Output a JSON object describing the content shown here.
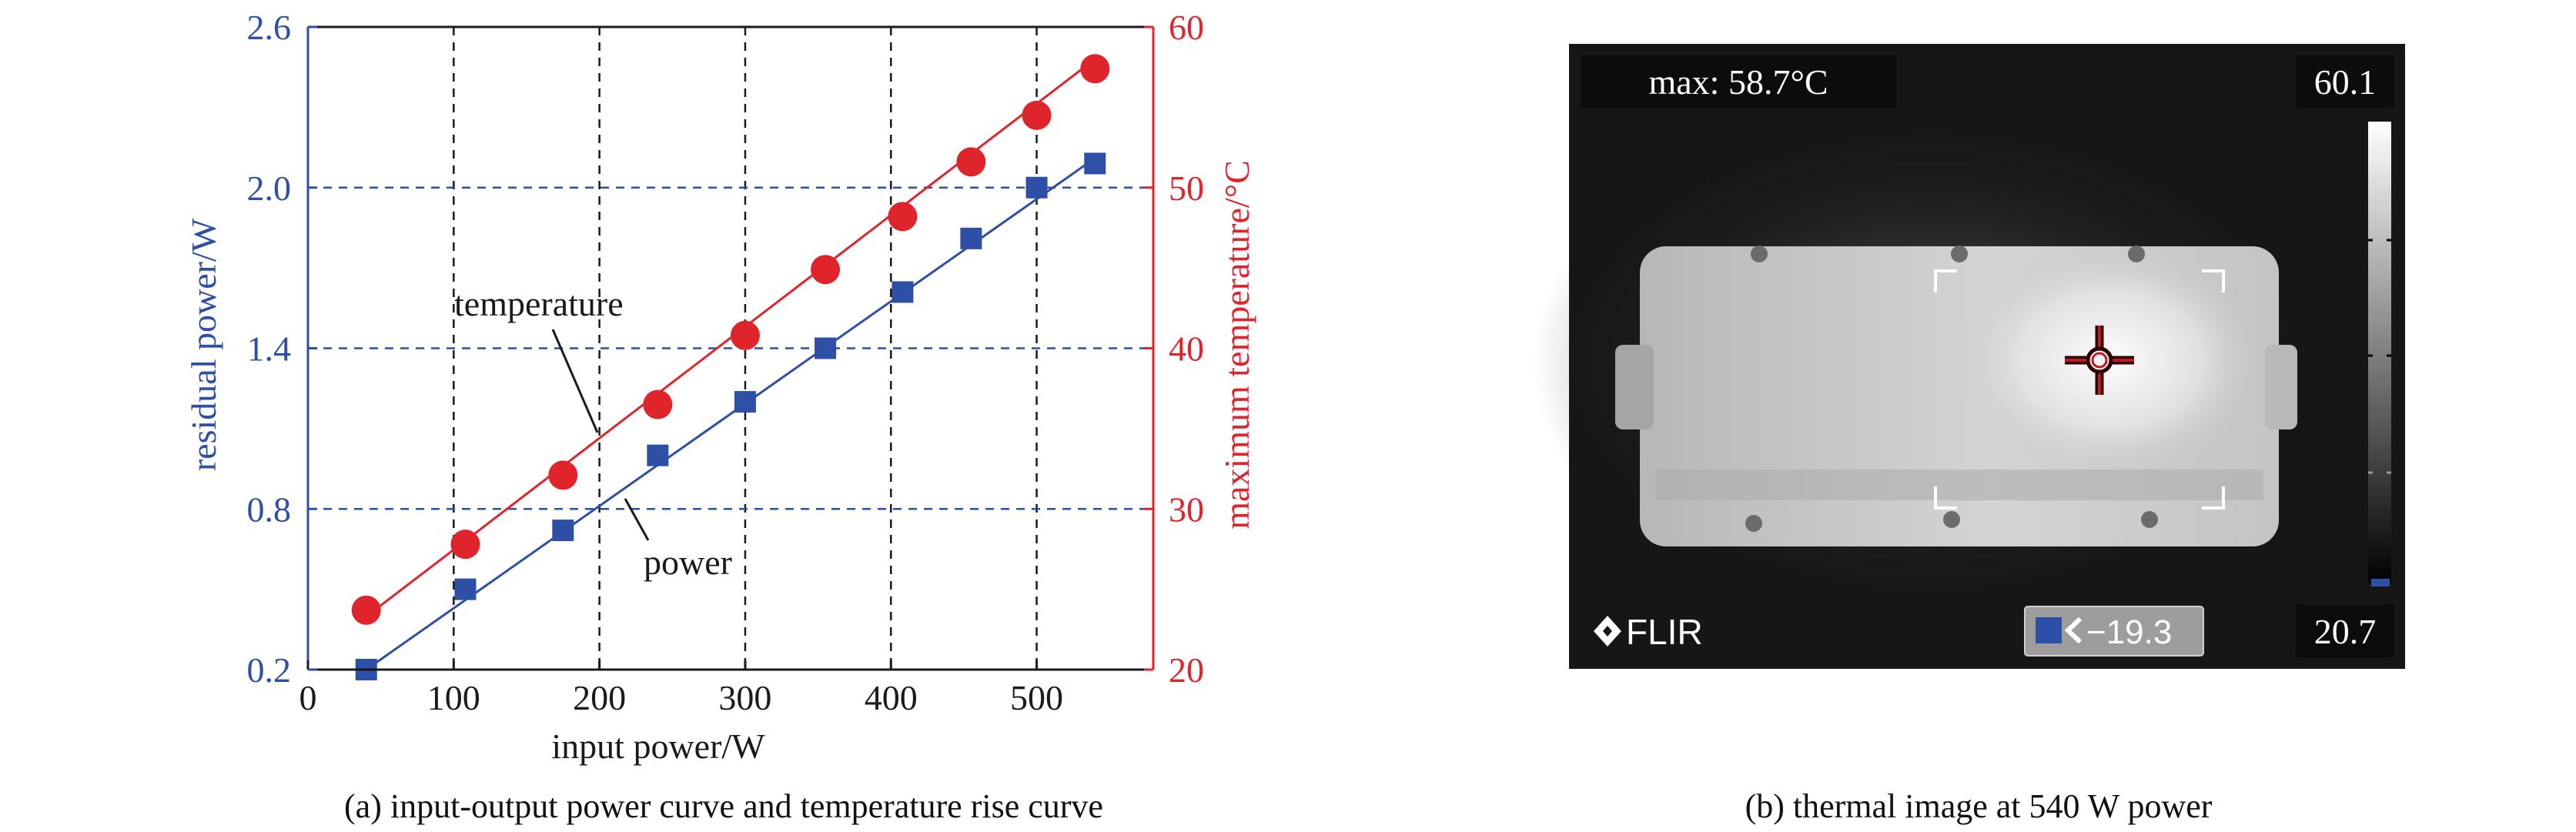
{
  "colors": {
    "power": "#2e4fa6",
    "temperature": "#e0242c",
    "axis_black": "#1a1a1a",
    "thermal_bg": "#161616"
  },
  "chart_data": {
    "type": "line",
    "x": [
      40,
      108,
      175,
      240,
      300,
      355,
      408,
      455,
      500,
      540
    ],
    "xlabel": "input power/W",
    "xlim": [
      0,
      580
    ],
    "xticks": [
      0,
      100,
      200,
      300,
      400,
      500
    ],
    "ylabel_left": "residual power/W",
    "ylim_left": [
      0.2,
      2.6
    ],
    "yticks_left": [
      "0.2",
      "0.8",
      "1.4",
      "2.0",
      "2.6"
    ],
    "ylabel_right": "maximum temperature/°C",
    "ylim_right": [
      20,
      60
    ],
    "yticks_right": [
      20,
      30,
      40,
      50,
      60
    ],
    "grid": "dashed",
    "series": [
      {
        "name": "power",
        "axis": "left",
        "marker": "square",
        "values": [
          0.2,
          0.5,
          0.72,
          1.0,
          1.2,
          1.4,
          1.61,
          1.81,
          2.0,
          2.09
        ],
        "fit": [
          0.2,
          2.11
        ]
      },
      {
        "name": "temperature",
        "axis": "right",
        "marker": "circle",
        "values": [
          23.7,
          27.8,
          32.1,
          36.5,
          40.8,
          44.9,
          48.2,
          51.6,
          54.5,
          57.4
        ],
        "fit": [
          23.3,
          58.0
        ]
      }
    ]
  },
  "captions": {
    "a": "(a) input-output power curve and temperature rise curve",
    "b": "(b) thermal image at 540 W power"
  },
  "thermal": {
    "max_label": "max: 58.7°C",
    "scale_max": "60.1",
    "scale_min": "20.7",
    "brand": "FLIR",
    "spot_value": "−19.3"
  }
}
